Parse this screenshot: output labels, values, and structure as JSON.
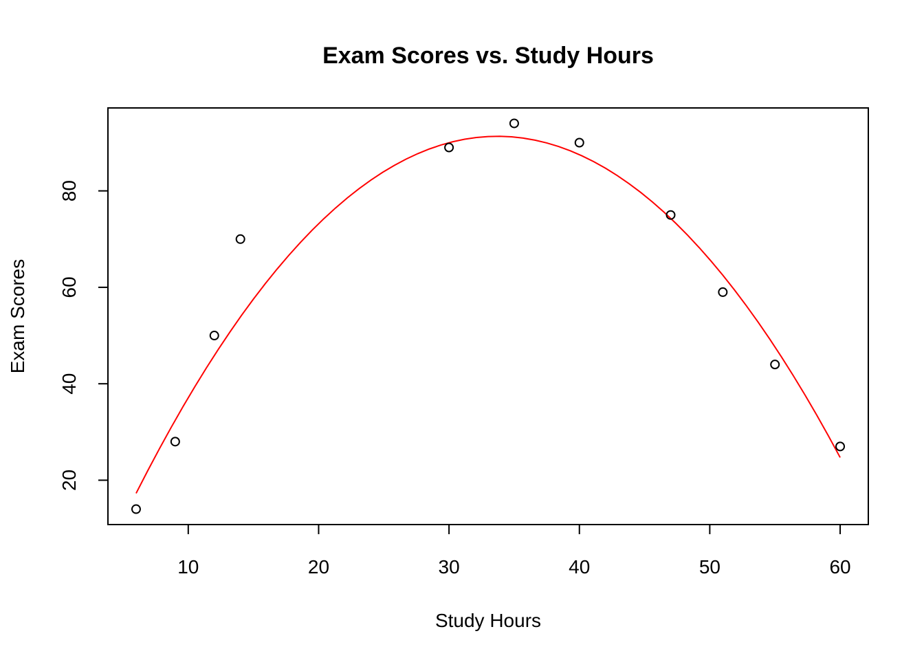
{
  "chart_data": {
    "type": "scatter",
    "title": "Exam Scores vs. Study Hours",
    "xlabel": "Study Hours",
    "ylabel": "Exam Scores",
    "xlim": [
      3.84,
      62.16
    ],
    "ylim": [
      10.8,
      97.2
    ],
    "x_ticks": [
      10,
      20,
      30,
      40,
      50,
      60
    ],
    "y_ticks": [
      20,
      40,
      60,
      80
    ],
    "grid": false,
    "legend": "none",
    "point_color": "#000000",
    "series": [
      {
        "values_x": [
          6,
          9,
          12,
          14,
          30,
          35,
          40,
          47,
          51,
          55,
          60
        ],
        "values_y": [
          14,
          28,
          50,
          70,
          89,
          94,
          90,
          75,
          59,
          44,
          27
        ]
      }
    ],
    "fit_curve": {
      "type": "quadratic",
      "color": "#ff0000",
      "coefficients": [
        -18.25,
        6.5,
        -0.0964
      ],
      "x_range": [
        6,
        60
      ]
    }
  }
}
